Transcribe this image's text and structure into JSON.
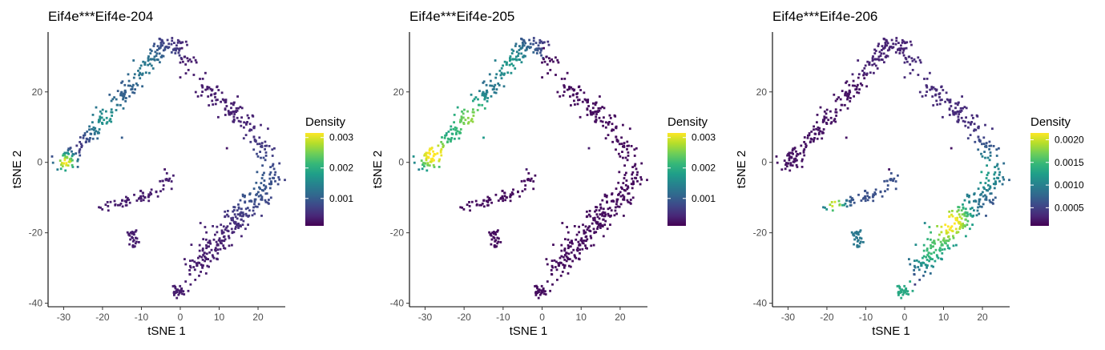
{
  "chart_data": [
    {
      "type": "scatter",
      "title": "Eif4e***Eif4e-204",
      "xlabel": "tSNE 1",
      "ylabel": "tSNE 2",
      "xlim": [
        -34,
        27
      ],
      "ylim": [
        -41,
        37
      ],
      "xticks": [
        -30,
        -20,
        -10,
        0,
        10,
        20
      ],
      "yticks": [
        -40,
        -20,
        0,
        20
      ],
      "grid": false,
      "legend": {
        "title": "Density",
        "position": "right",
        "min": 0.0001,
        "max": 0.00315,
        "ticks": [
          0.001,
          0.002,
          0.003
        ],
        "tick_labels": [
          "0.001",
          "0.002",
          "0.003"
        ]
      },
      "hotspot": "left-end"
    },
    {
      "type": "scatter",
      "title": "Eif4e***Eif4e-205",
      "xlabel": "tSNE 1",
      "ylabel": "tSNE 2",
      "xlim": [
        -34,
        27
      ],
      "ylim": [
        -41,
        37
      ],
      "xticks": [
        -30,
        -20,
        -10,
        0,
        10,
        20
      ],
      "yticks": [
        -40,
        -20,
        0,
        20
      ],
      "grid": false,
      "legend": {
        "title": "Density",
        "position": "right",
        "min": 0.0001,
        "max": 0.00315,
        "ticks": [
          0.001,
          0.002,
          0.003
        ],
        "tick_labels": [
          "0.001",
          "0.002",
          "0.003"
        ]
      },
      "hotspot": "left-arm"
    },
    {
      "type": "scatter",
      "title": "Eif4e***Eif4e-206",
      "xlabel": "tSNE 1",
      "ylabel": "tSNE 2",
      "xlim": [
        -34,
        27
      ],
      "ylim": [
        -41,
        37
      ],
      "xticks": [
        -30,
        -20,
        -10,
        0,
        10,
        20
      ],
      "yticks": [
        -40,
        -20,
        0,
        20
      ],
      "grid": false,
      "legend": {
        "title": "Density",
        "position": "right",
        "min": 0.0001,
        "max": 0.00215,
        "ticks": [
          0.0005,
          0.001,
          0.0015,
          0.002
        ],
        "tick_labels": [
          "0.0005",
          "0.0010",
          "0.0015",
          "0.0020"
        ]
      },
      "hotspot": "right-arm"
    }
  ],
  "colors": {
    "viridis": [
      "#440154",
      "#482878",
      "#3e4989",
      "#31688e",
      "#26828e",
      "#1f9e89",
      "#35b779",
      "#6ece58",
      "#b5de2b",
      "#fde725"
    ],
    "axis": "#000000",
    "tick_text": "#4d4d4d"
  }
}
